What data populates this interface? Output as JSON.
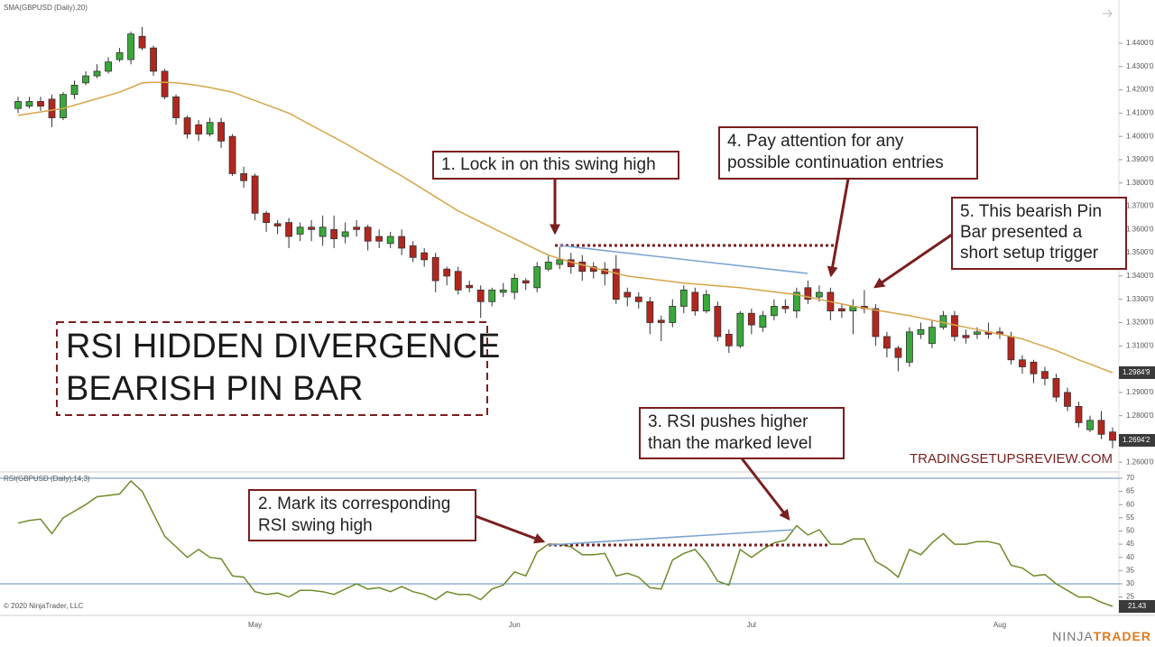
{
  "chart_data": [
    {
      "type": "candlestick",
      "open": [
        1.412,
        1.413,
        1.415,
        1.416,
        1.408,
        1.418,
        1.423,
        1.426,
        1.428,
        1.433,
        1.433,
        1.443,
        1.438,
        1.428,
        1.417,
        1.408,
        1.405,
        1.401,
        1.406,
        1.4,
        1.384,
        1.383,
        1.367,
        1.3625,
        1.363,
        1.358,
        1.361,
        1.357,
        1.36,
        1.357,
        1.361,
        1.361,
        1.357,
        1.354,
        1.357,
        1.353,
        1.35,
        1.348,
        1.343,
        1.342,
        1.336,
        1.334,
        1.329,
        1.333,
        1.333,
        1.338,
        1.335,
        1.343,
        1.345,
        1.347,
        1.346,
        1.344,
        1.343,
        1.343,
        1.333,
        1.331,
        1.329,
        1.321,
        1.32,
        1.327,
        1.333,
        1.325,
        1.327,
        1.315,
        1.31,
        1.324,
        1.318,
        1.323,
        1.327,
        1.325,
        1.335,
        1.331,
        1.333,
        1.326,
        1.325,
        1.327,
        1.326,
        1.314,
        1.309,
        1.303,
        1.315,
        1.311,
        1.318,
        1.323,
        1.3145,
        1.315,
        1.316,
        1.316,
        1.314,
        1.304,
        1.303,
        1.299,
        1.296,
        1.29,
        1.284,
        1.274,
        1.278,
        1.273
      ],
      "high": [
        1.417,
        1.417,
        1.417,
        1.418,
        1.419,
        1.424,
        1.428,
        1.431,
        1.434,
        1.438,
        1.445,
        1.447,
        1.439,
        1.429,
        1.418,
        1.409,
        1.407,
        1.408,
        1.408,
        1.401,
        1.387,
        1.384,
        1.368,
        1.364,
        1.365,
        1.363,
        1.364,
        1.366,
        1.366,
        1.363,
        1.364,
        1.362,
        1.36,
        1.359,
        1.36,
        1.355,
        1.352,
        1.35,
        1.344,
        1.344,
        1.338,
        1.336,
        1.335,
        1.337,
        1.341,
        1.339,
        1.346,
        1.349,
        1.3525,
        1.35,
        1.349,
        1.346,
        1.346,
        1.349,
        1.335,
        1.333,
        1.331,
        1.323,
        1.33,
        1.336,
        1.335,
        1.334,
        1.329,
        1.317,
        1.325,
        1.326,
        1.325,
        1.33,
        1.33,
        1.335,
        1.338,
        1.336,
        1.335,
        1.328,
        1.33,
        1.334,
        1.328,
        1.316,
        1.31,
        1.318,
        1.32,
        1.321,
        1.325,
        1.325,
        1.317,
        1.318,
        1.32,
        1.318,
        1.316,
        1.306,
        1.304,
        1.301,
        1.298,
        1.292,
        1.286,
        1.28,
        1.282,
        1.275
      ],
      "low": [
        1.41,
        1.412,
        1.411,
        1.404,
        1.407,
        1.416,
        1.422,
        1.425,
        1.427,
        1.432,
        1.431,
        1.437,
        1.426,
        1.416,
        1.405,
        1.399,
        1.398,
        1.4,
        1.395,
        1.383,
        1.378,
        1.364,
        1.359,
        1.358,
        1.352,
        1.355,
        1.355,
        1.353,
        1.352,
        1.354,
        1.357,
        1.351,
        1.352,
        1.352,
        1.349,
        1.346,
        1.344,
        1.333,
        1.336,
        1.332,
        1.333,
        1.322,
        1.327,
        1.331,
        1.33,
        1.334,
        1.333,
        1.342,
        1.343,
        1.341,
        1.338,
        1.339,
        1.336,
        1.328,
        1.327,
        1.326,
        1.315,
        1.312,
        1.318,
        1.324,
        1.323,
        1.324,
        1.312,
        1.307,
        1.309,
        1.315,
        1.316,
        1.321,
        1.324,
        1.322,
        1.328,
        1.329,
        1.321,
        1.322,
        1.315,
        1.324,
        1.31,
        1.305,
        1.299,
        1.301,
        1.313,
        1.309,
        1.317,
        1.312,
        1.311,
        1.313,
        1.313,
        1.313,
        1.302,
        1.298,
        1.294,
        1.293,
        1.286,
        1.282,
        1.275,
        1.273,
        1.27,
        1.266
      ],
      "close": [
        1.415,
        1.415,
        1.413,
        1.408,
        1.418,
        1.422,
        1.426,
        1.428,
        1.432,
        1.436,
        1.444,
        1.438,
        1.428,
        1.417,
        1.408,
        1.401,
        1.401,
        1.406,
        1.398,
        1.384,
        1.381,
        1.367,
        1.363,
        1.3615,
        1.357,
        1.361,
        1.36,
        1.361,
        1.356,
        1.359,
        1.36,
        1.355,
        1.355,
        1.357,
        1.352,
        1.348,
        1.347,
        1.338,
        1.34,
        1.334,
        1.335,
        1.329,
        1.334,
        1.334,
        1.339,
        1.337,
        1.344,
        1.346,
        1.347,
        1.344,
        1.342,
        1.342,
        1.341,
        1.33,
        1.331,
        1.329,
        1.32,
        1.32,
        1.327,
        1.334,
        1.325,
        1.332,
        1.314,
        1.31,
        1.324,
        1.319,
        1.323,
        1.327,
        1.326,
        1.333,
        1.33,
        1.333,
        1.325,
        1.325,
        1.327,
        1.326,
        1.314,
        1.309,
        1.305,
        1.316,
        1.317,
        1.318,
        1.323,
        1.314,
        1.3135,
        1.316,
        1.315,
        1.315,
        1.304,
        1.301,
        1.298,
        1.296,
        1.288,
        1.284,
        1.277,
        1.278,
        1.272,
        1.26942
      ],
      "close_label": "1.2694'2",
      "up_color": "#3aa83a",
      "down_color": "#b3261e",
      "series": [
        {
          "name": "SMA(GBPUSD (Daily),20)",
          "color": "#d6a54a",
          "end_label": "1.2984'9",
          "values": [
            1.409,
            1.4098,
            1.4105,
            1.4113,
            1.412,
            1.4134,
            1.4148,
            1.4162,
            1.4176,
            1.419,
            1.421,
            1.423,
            1.4232,
            1.4232,
            1.423,
            1.4225,
            1.4218,
            1.421,
            1.42,
            1.419,
            1.4172,
            1.4154,
            1.4136,
            1.4118,
            1.41,
            1.4074,
            1.4048,
            1.4022,
            1.3996,
            1.397,
            1.3942,
            1.3914,
            1.3886,
            1.3858,
            1.383,
            1.38,
            1.377,
            1.374,
            1.371,
            1.368,
            1.3656,
            1.3632,
            1.3608,
            1.3584,
            1.356,
            1.3537,
            1.3513,
            1.349,
            1.3475,
            1.346,
            1.3448,
            1.3436,
            1.3424,
            1.3412,
            1.34,
            1.3394,
            1.3388,
            1.3382,
            1.3376,
            1.337,
            1.3366,
            1.3362,
            1.3358,
            1.3354,
            1.335,
            1.3344,
            1.3338,
            1.3332,
            1.3326,
            1.332,
            1.331,
            1.33,
            1.329,
            1.328,
            1.327,
            1.3262,
            1.3254,
            1.3246,
            1.3238,
            1.323,
            1.322,
            1.321,
            1.32,
            1.319,
            1.318,
            1.317,
            1.316,
            1.315,
            1.314,
            1.313,
            1.3113,
            1.3097,
            1.308,
            1.306,
            1.304,
            1.3022,
            1.3003,
            1.29849
          ]
        }
      ],
      "ylim": [
        1.257,
        1.4555
      ],
      "yticks": [
        {
          "value": 1.44,
          "label": "1.4400'0"
        },
        {
          "value": 1.43,
          "label": "1.4300'0"
        },
        {
          "value": 1.42,
          "label": "1.4200'0"
        },
        {
          "value": 1.41,
          "label": "1.4100'0"
        },
        {
          "value": 1.4,
          "label": "1.4000'0"
        },
        {
          "value": 1.39,
          "label": "1.3900'0"
        },
        {
          "value": 1.38,
          "label": "1.3800'0"
        },
        {
          "value": 1.37,
          "label": "1.3700'0"
        },
        {
          "value": 1.36,
          "label": "1.3600'0"
        },
        {
          "value": 1.35,
          "label": "1.3500'0"
        },
        {
          "value": 1.34,
          "label": "1.3400'0"
        },
        {
          "value": 1.33,
          "label": "1.3300'0"
        },
        {
          "value": 1.32,
          "label": "1.3200'0"
        },
        {
          "value": 1.31,
          "label": "1.3100'0"
        },
        {
          "value": 1.29,
          "label": "1.2900'0"
        },
        {
          "value": 1.28,
          "label": "1.2800'0"
        },
        {
          "value": 1.26,
          "label": "1.2600'0"
        }
      ]
    },
    {
      "type": "line",
      "categories": [
        null,
        null,
        null,
        null,
        null,
        null,
        null,
        null,
        null,
        null,
        null,
        null,
        null,
        null,
        null,
        null,
        null,
        null,
        null,
        null,
        null,
        "May",
        null,
        null,
        null,
        null,
        null,
        null,
        null,
        null,
        null,
        null,
        null,
        null,
        null,
        null,
        null,
        null,
        null,
        null,
        null,
        null,
        null,
        null,
        "Jun",
        null,
        null,
        null,
        null,
        null,
        null,
        null,
        null,
        null,
        null,
        null,
        null,
        null,
        null,
        null,
        null,
        null,
        null,
        null,
        null,
        "Jul",
        null,
        null,
        null,
        null,
        null,
        null,
        null,
        null,
        null,
        null,
        null,
        null,
        null,
        null,
        null,
        null,
        null,
        null,
        null,
        null,
        null,
        "Aug",
        null,
        null,
        null,
        null,
        null,
        null,
        null,
        null,
        null,
        null
      ],
      "series": [
        {
          "name": "RSI(GBPUSD (Daily),14,3)",
          "color": "#6e8b2a",
          "values": [
            53,
            54,
            54.5,
            49,
            55,
            57.5,
            60,
            63,
            63.5,
            64,
            69,
            65,
            56.5,
            48,
            44,
            40,
            43,
            40,
            39.5,
            33,
            32.5,
            27,
            26,
            26.5,
            25,
            27.5,
            27.5,
            27,
            26,
            28,
            30,
            28,
            28.5,
            27,
            29,
            27,
            26,
            24,
            27,
            26,
            26,
            24,
            28,
            29.5,
            34.5,
            33,
            42,
            45,
            45,
            44,
            41,
            41,
            41.5,
            33,
            34,
            32.5,
            28.5,
            28,
            39,
            41.5,
            43,
            38,
            31,
            29.5,
            43,
            40,
            43,
            45.5,
            46.5,
            52,
            48.5,
            50.5,
            45,
            45,
            47,
            47,
            38.5,
            36,
            32.5,
            43,
            41,
            45.5,
            49,
            45,
            45,
            46,
            46,
            45,
            37,
            36,
            33,
            33.5,
            30,
            27.5,
            25,
            25,
            23,
            21.43
          ]
        }
      ],
      "levels": [
        70,
        30
      ],
      "level_color": "#5b8db8",
      "ylim": [
        18.7,
        72
      ],
      "yticks": [
        70,
        65,
        60,
        55,
        50,
        45,
        40,
        35,
        30,
        25
      ]
    }
  ],
  "annotations": {
    "title": [
      "RSI HIDDEN DIVERGENCE",
      "BEARISH PIN BAR"
    ],
    "callouts": [
      {
        "lines": [
          "1. Lock in on this swing high"
        ]
      },
      {
        "lines": [
          "2. Mark its corresponding",
          "RSI swing high"
        ]
      },
      {
        "lines": [
          "3. RSI pushes higher",
          "than the marked level"
        ]
      },
      {
        "lines": [
          "4. Pay attention for any",
          "possible continuation entries"
        ]
      },
      {
        "lines": [
          "5. This bearish Pin",
          "Bar presented a",
          "short setup trigger"
        ]
      }
    ],
    "watermark": "TRADINGSETUPSREVIEW.COM",
    "copyright": "© 2020 NinjaTrader, LLC",
    "logo": [
      "NINJA",
      "TRADER"
    ]
  }
}
